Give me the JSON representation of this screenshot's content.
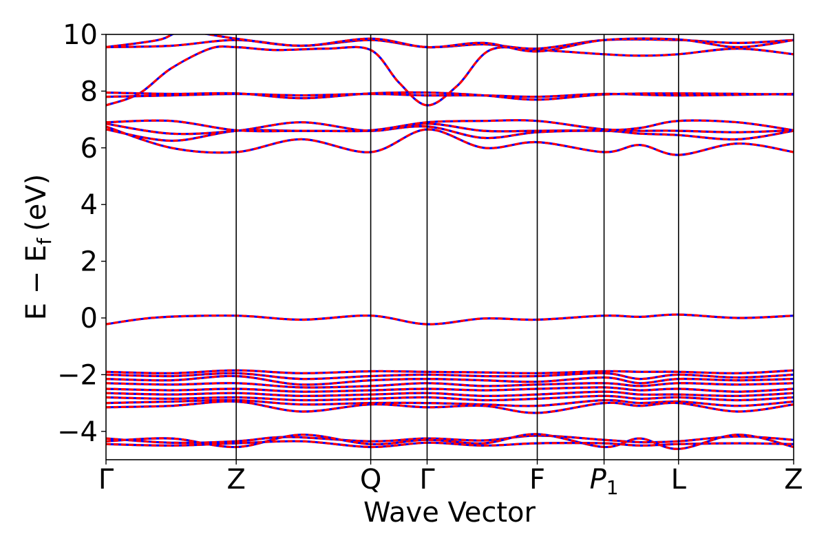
{
  "chart_data": {
    "type": "line",
    "title": "",
    "xlabel": "Wave Vector",
    "ylabel": "E − E",
    "ylabel_subscript": "f",
    "ylabel_unit": "(eV)",
    "ylim": [
      -5,
      10
    ],
    "yticks": [
      -4,
      -2,
      0,
      2,
      4,
      6,
      8,
      10
    ],
    "ytick_labels": [
      "−4",
      "−2",
      "0",
      "2",
      "4",
      "6",
      "8",
      "10"
    ],
    "kpath": [
      {
        "label": "Γ",
        "x": 0.0
      },
      {
        "label": "Z",
        "x": 1.0
      },
      {
        "label": "Q",
        "x": 2.033
      },
      {
        "label": "Γ",
        "x": 2.466
      },
      {
        "label": "F",
        "x": 3.312
      },
      {
        "label": "P",
        "sub": "1",
        "italic": true,
        "x": 3.825
      },
      {
        "label": "L",
        "x": 4.397
      },
      {
        "label": "Z",
        "x": 5.281
      }
    ],
    "xlim": [
      0.0,
      5.281
    ],
    "line_styles": {
      "spin_up": "#ff0000",
      "spin_down": "#0000ff"
    },
    "grid": false,
    "legend": "none",
    "series": [
      {
        "values": [
          [
            0.0,
            -0.22
          ],
          [
            0.4,
            0.02
          ],
          [
            1.0,
            0.08
          ],
          [
            1.5,
            -0.06
          ],
          [
            2.033,
            0.08
          ],
          [
            2.466,
            -0.22
          ],
          [
            2.9,
            -0.02
          ],
          [
            3.312,
            -0.06
          ],
          [
            3.825,
            0.08
          ],
          [
            4.1,
            0.04
          ],
          [
            4.397,
            0.12
          ],
          [
            4.85,
            0.0
          ],
          [
            5.281,
            0.08
          ]
        ]
      },
      {
        "values": [
          [
            0.0,
            -4.25
          ],
          [
            0.5,
            -4.4
          ],
          [
            1.0,
            -4.35
          ],
          [
            1.4,
            -4.2
          ],
          [
            2.033,
            -4.35
          ],
          [
            2.466,
            -4.25
          ],
          [
            2.9,
            -4.32
          ],
          [
            3.312,
            -4.15
          ],
          [
            3.825,
            -4.3
          ],
          [
            4.1,
            -4.38
          ],
          [
            4.397,
            -4.35
          ],
          [
            4.85,
            -4.18
          ],
          [
            5.281,
            -4.3
          ]
        ]
      },
      {
        "values": [
          [
            0.0,
            -4.35
          ],
          [
            0.5,
            -4.25
          ],
          [
            1.0,
            -4.55
          ],
          [
            1.5,
            -4.12
          ],
          [
            2.033,
            -4.45
          ],
          [
            2.466,
            -4.3
          ],
          [
            2.9,
            -4.42
          ],
          [
            3.312,
            -4.1
          ],
          [
            3.825,
            -4.55
          ],
          [
            4.1,
            -4.25
          ],
          [
            4.397,
            -4.62
          ],
          [
            4.85,
            -4.12
          ],
          [
            5.281,
            -4.55
          ]
        ]
      },
      {
        "values": [
          [
            0.0,
            -4.45
          ],
          [
            0.5,
            -4.5
          ],
          [
            1.0,
            -4.42
          ],
          [
            1.5,
            -4.35
          ],
          [
            2.033,
            -4.55
          ],
          [
            2.466,
            -4.4
          ],
          [
            2.9,
            -4.5
          ],
          [
            3.312,
            -4.42
          ],
          [
            3.825,
            -4.42
          ],
          [
            4.1,
            -4.5
          ],
          [
            4.397,
            -4.45
          ],
          [
            4.85,
            -4.42
          ],
          [
            5.281,
            -4.45
          ]
        ]
      },
      {
        "values": [
          [
            0.0,
            -1.9
          ],
          [
            0.5,
            -1.95
          ],
          [
            1.0,
            -1.85
          ],
          [
            1.5,
            -1.95
          ],
          [
            2.033,
            -1.88
          ],
          [
            2.466,
            -1.9
          ],
          [
            2.9,
            -1.92
          ],
          [
            3.312,
            -1.95
          ],
          [
            3.825,
            -1.88
          ],
          [
            4.1,
            -1.9
          ],
          [
            4.397,
            -1.9
          ],
          [
            4.85,
            -1.95
          ],
          [
            5.281,
            -1.85
          ]
        ]
      },
      {
        "values": [
          [
            0.0,
            -2.0
          ],
          [
            0.5,
            -2.05
          ],
          [
            1.0,
            -1.95
          ],
          [
            1.5,
            -2.15
          ],
          [
            2.033,
            -2.05
          ],
          [
            2.466,
            -2.0
          ],
          [
            2.9,
            -2.05
          ],
          [
            3.312,
            -2.05
          ],
          [
            3.825,
            -1.95
          ],
          [
            4.1,
            -2.15
          ],
          [
            4.397,
            -2.0
          ],
          [
            4.85,
            -2.1
          ],
          [
            5.281,
            -2.0
          ]
        ]
      },
      {
        "values": [
          [
            0.0,
            -2.15
          ],
          [
            0.5,
            -2.2
          ],
          [
            1.0,
            -2.05
          ],
          [
            1.5,
            -2.35
          ],
          [
            2.033,
            -2.2
          ],
          [
            2.466,
            -2.15
          ],
          [
            2.9,
            -2.2
          ],
          [
            3.312,
            -2.25
          ],
          [
            3.825,
            -2.1
          ],
          [
            4.1,
            -2.3
          ],
          [
            4.397,
            -2.15
          ],
          [
            4.85,
            -2.2
          ],
          [
            5.281,
            -2.15
          ]
        ]
      },
      {
        "values": [
          [
            0.0,
            -2.3
          ],
          [
            0.5,
            -2.35
          ],
          [
            1.0,
            -2.3
          ],
          [
            1.5,
            -2.45
          ],
          [
            2.033,
            -2.4
          ],
          [
            2.466,
            -2.3
          ],
          [
            2.9,
            -2.4
          ],
          [
            3.312,
            -2.35
          ],
          [
            3.825,
            -2.3
          ],
          [
            4.1,
            -2.4
          ],
          [
            4.397,
            -2.3
          ],
          [
            4.85,
            -2.35
          ],
          [
            5.281,
            -2.3
          ]
        ]
      },
      {
        "values": [
          [
            0.0,
            -2.5
          ],
          [
            0.5,
            -2.55
          ],
          [
            1.0,
            -2.5
          ],
          [
            1.5,
            -2.6
          ],
          [
            2.033,
            -2.55
          ],
          [
            2.466,
            -2.5
          ],
          [
            2.9,
            -2.55
          ],
          [
            3.312,
            -2.5
          ],
          [
            3.825,
            -2.45
          ],
          [
            4.1,
            -2.55
          ],
          [
            4.397,
            -2.5
          ],
          [
            4.85,
            -2.6
          ],
          [
            5.281,
            -2.5
          ]
        ]
      },
      {
        "values": [
          [
            0.0,
            -2.65
          ],
          [
            0.5,
            -2.7
          ],
          [
            1.0,
            -2.65
          ],
          [
            1.5,
            -2.75
          ],
          [
            2.033,
            -2.7
          ],
          [
            2.466,
            -2.65
          ],
          [
            2.9,
            -2.75
          ],
          [
            3.312,
            -2.7
          ],
          [
            3.825,
            -2.6
          ],
          [
            4.1,
            -2.7
          ],
          [
            4.397,
            -2.7
          ],
          [
            4.85,
            -2.75
          ],
          [
            5.281,
            -2.65
          ]
        ]
      },
      {
        "values": [
          [
            0.0,
            -2.8
          ],
          [
            0.5,
            -2.85
          ],
          [
            1.0,
            -2.8
          ],
          [
            1.5,
            -2.9
          ],
          [
            2.033,
            -2.85
          ],
          [
            2.466,
            -2.8
          ],
          [
            2.9,
            -2.9
          ],
          [
            3.312,
            -2.85
          ],
          [
            3.825,
            -2.75
          ],
          [
            4.1,
            -2.85
          ],
          [
            4.397,
            -2.8
          ],
          [
            4.85,
            -2.9
          ],
          [
            5.281,
            -2.8
          ]
        ]
      },
      {
        "values": [
          [
            0.0,
            -3.0
          ],
          [
            0.5,
            -2.95
          ],
          [
            1.0,
            -2.9
          ],
          [
            1.5,
            -3.05
          ],
          [
            2.033,
            -3.0
          ],
          [
            2.466,
            -3.0
          ],
          [
            2.9,
            -3.05
          ],
          [
            3.312,
            -3.1
          ],
          [
            3.825,
            -2.9
          ],
          [
            4.1,
            -3.0
          ],
          [
            4.397,
            -2.95
          ],
          [
            4.85,
            -3.1
          ],
          [
            5.281,
            -2.95
          ]
        ]
      },
      {
        "values": [
          [
            0.0,
            -3.15
          ],
          [
            0.5,
            -3.1
          ],
          [
            1.0,
            -2.95
          ],
          [
            1.5,
            -3.3
          ],
          [
            2.033,
            -3.05
          ],
          [
            2.466,
            -3.15
          ],
          [
            2.9,
            -3.1
          ],
          [
            3.312,
            -3.35
          ],
          [
            3.825,
            -3.0
          ],
          [
            4.1,
            -3.1
          ],
          [
            4.397,
            -3.0
          ],
          [
            4.85,
            -3.3
          ],
          [
            5.281,
            -3.05
          ]
        ]
      },
      {
        "values": [
          [
            0.0,
            6.75
          ],
          [
            0.5,
            6.0
          ],
          [
            1.0,
            5.85
          ],
          [
            1.5,
            6.3
          ],
          [
            2.033,
            5.85
          ],
          [
            2.466,
            6.65
          ],
          [
            2.9,
            6.0
          ],
          [
            3.312,
            6.2
          ],
          [
            3.825,
            5.85
          ],
          [
            4.1,
            6.1
          ],
          [
            4.397,
            5.75
          ],
          [
            4.85,
            6.15
          ],
          [
            5.281,
            5.85
          ]
        ]
      },
      {
        "values": [
          [
            0.0,
            6.65
          ],
          [
            0.5,
            6.25
          ],
          [
            1.0,
            6.6
          ],
          [
            1.5,
            6.6
          ],
          [
            2.033,
            6.6
          ],
          [
            2.466,
            6.75
          ],
          [
            2.9,
            6.35
          ],
          [
            3.312,
            6.55
          ],
          [
            3.825,
            6.6
          ],
          [
            4.1,
            6.5
          ],
          [
            4.397,
            6.45
          ],
          [
            4.85,
            6.3
          ],
          [
            5.281,
            6.6
          ]
        ]
      },
      {
        "values": [
          [
            0.0,
            6.85
          ],
          [
            0.5,
            6.5
          ],
          [
            1.0,
            6.6
          ],
          [
            1.5,
            6.9
          ],
          [
            2.033,
            6.6
          ],
          [
            2.466,
            6.85
          ],
          [
            2.9,
            6.6
          ],
          [
            3.312,
            6.6
          ],
          [
            3.825,
            6.62
          ],
          [
            4.1,
            6.6
          ],
          [
            4.397,
            6.6
          ],
          [
            4.85,
            6.55
          ],
          [
            5.281,
            6.62
          ]
        ]
      },
      {
        "values": [
          [
            0.0,
            6.9
          ],
          [
            0.5,
            6.95
          ],
          [
            1.0,
            6.62
          ],
          [
            1.5,
            6.6
          ],
          [
            2.033,
            6.62
          ],
          [
            2.466,
            6.9
          ],
          [
            2.9,
            6.95
          ],
          [
            3.312,
            6.95
          ],
          [
            3.825,
            6.65
          ],
          [
            4.1,
            6.7
          ],
          [
            4.397,
            6.95
          ],
          [
            4.85,
            6.9
          ],
          [
            5.281,
            6.62
          ]
        ]
      },
      {
        "values": [
          [
            0.0,
            7.5
          ],
          [
            0.25,
            7.9
          ],
          [
            0.5,
            8.8
          ],
          [
            0.8,
            9.5
          ],
          [
            1.0,
            9.55
          ],
          [
            1.3,
            9.45
          ],
          [
            1.7,
            9.5
          ],
          [
            2.033,
            9.45
          ],
          [
            2.25,
            8.3
          ],
          [
            2.466,
            7.5
          ],
          [
            2.7,
            8.2
          ],
          [
            2.95,
            9.45
          ],
          [
            3.312,
            9.45
          ],
          [
            3.825,
            9.3
          ],
          [
            4.1,
            9.25
          ],
          [
            4.397,
            9.3
          ],
          [
            4.85,
            9.5
          ],
          [
            5.281,
            9.3
          ]
        ]
      },
      {
        "values": [
          [
            0.0,
            7.8
          ],
          [
            0.5,
            7.85
          ],
          [
            1.0,
            7.9
          ],
          [
            1.5,
            7.85
          ],
          [
            2.033,
            7.9
          ],
          [
            2.466,
            7.85
          ],
          [
            2.9,
            7.85
          ],
          [
            3.312,
            7.8
          ],
          [
            3.825,
            7.9
          ],
          [
            4.397,
            7.85
          ],
          [
            5.281,
            7.9
          ]
        ]
      },
      {
        "values": [
          [
            0.0,
            7.95
          ],
          [
            0.5,
            7.9
          ],
          [
            1.0,
            7.92
          ],
          [
            1.5,
            7.75
          ],
          [
            2.033,
            7.92
          ],
          [
            2.466,
            7.95
          ],
          [
            2.9,
            7.85
          ],
          [
            3.312,
            7.7
          ],
          [
            3.825,
            7.88
          ],
          [
            4.397,
            7.92
          ],
          [
            5.281,
            7.88
          ]
        ]
      },
      {
        "values": [
          [
            0.0,
            9.55
          ],
          [
            0.5,
            9.6
          ],
          [
            1.0,
            9.8
          ],
          [
            1.5,
            9.6
          ],
          [
            2.033,
            9.8
          ],
          [
            2.466,
            9.55
          ],
          [
            2.9,
            9.65
          ],
          [
            3.312,
            9.5
          ],
          [
            3.825,
            9.8
          ],
          [
            4.397,
            9.8
          ],
          [
            4.85,
            9.7
          ],
          [
            5.281,
            9.8
          ]
        ]
      },
      {
        "values": [
          [
            0.0,
            9.55
          ],
          [
            0.4,
            9.8
          ],
          [
            0.6,
            10.1
          ],
          [
            1.0,
            9.85
          ],
          [
            1.5,
            9.6
          ],
          [
            2.033,
            9.85
          ],
          [
            2.466,
            9.55
          ],
          [
            2.9,
            9.7
          ],
          [
            3.312,
            9.4
          ],
          [
            3.825,
            9.8
          ],
          [
            4.397,
            9.82
          ],
          [
            4.85,
            9.55
          ],
          [
            5.281,
            9.8
          ]
        ]
      }
    ]
  }
}
